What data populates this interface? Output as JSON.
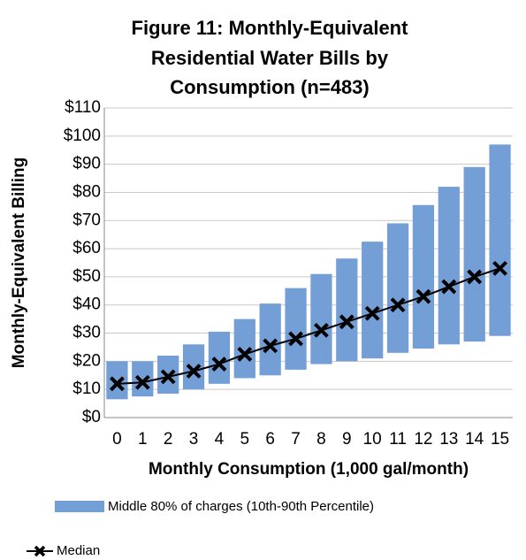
{
  "chart_data": {
    "type": "range-bar-line",
    "title": [
      "Figure 11: Monthly-Equivalent",
      "Residential Water Bills by",
      "Consumption (n=483)"
    ],
    "x_label": "Monthly Consumption (1,000 gal/month)",
    "y_label": "Monthly-Equivalent Billing",
    "categories": [
      "0",
      "1",
      "2",
      "3",
      "4",
      "5",
      "6",
      "7",
      "8",
      "9",
      "10",
      "11",
      "12",
      "13",
      "14",
      "15"
    ],
    "series": [
      {
        "name": "Middle 80% of charges (10th-90th Percentile)",
        "color": "#739fd6",
        "low": [
          6.5,
          7.5,
          8.5,
          10,
          12,
          14,
          15,
          17,
          19,
          20,
          21,
          23,
          24.5,
          26,
          27,
          29
        ],
        "high": [
          20,
          20,
          22,
          26,
          30.5,
          35,
          40.5,
          46,
          51,
          56.5,
          62.5,
          69,
          75.5,
          82,
          89,
          97
        ]
      },
      {
        "name": "Median",
        "color": "#000000",
        "values": [
          12,
          12.5,
          14.5,
          16.5,
          19,
          22.5,
          25.5,
          28,
          31,
          34,
          37,
          40,
          43,
          46.5,
          50,
          53
        ]
      }
    ],
    "ylim": [
      0,
      110
    ],
    "yticks": [
      {
        "value": 0,
        "label": "$0"
      },
      {
        "value": 10,
        "label": "$10"
      },
      {
        "value": 20,
        "label": "$20"
      },
      {
        "value": 30,
        "label": "$30"
      },
      {
        "value": 40,
        "label": "$40"
      },
      {
        "value": 50,
        "label": "$50"
      },
      {
        "value": 60,
        "label": "$60"
      },
      {
        "value": 70,
        "label": "$70"
      },
      {
        "value": 80,
        "label": "$80"
      },
      {
        "value": 90,
        "label": "$90"
      },
      {
        "value": 100,
        "label": "$100"
      },
      {
        "value": 110,
        "label": "$110"
      }
    ],
    "grid": true
  }
}
